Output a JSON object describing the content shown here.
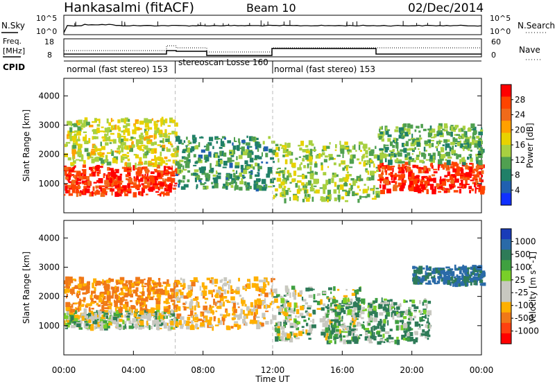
{
  "header": {
    "station": "Hankasalmi (fitACF)",
    "beam": "Beam 10",
    "date": "02/Dec/2014"
  },
  "noise_panel": {
    "left_label": "N.Sky",
    "right_label": "N.Search",
    "ytick_top": "10^5",
    "ytick_bottom": "10^0"
  },
  "freq_panel": {
    "left_label_1": "Freq.",
    "left_label_2": "[MHz]",
    "left_ticks": [
      "18",
      "8"
    ],
    "right_label": "Nave",
    "right_ticks": [
      "60",
      "0"
    ],
    "cpid_label": "CPID"
  },
  "cpid_segments": [
    {
      "label": "normal (fast stereo) 153",
      "start_hour": 0,
      "end_hour": 6.4
    },
    {
      "label": "stereoscan Losse 160",
      "start_hour": 6.4,
      "end_hour": 12
    },
    {
      "label": "normal (fast stereo) 153",
      "start_hour": 12,
      "end_hour": 24
    }
  ],
  "chart_data": [
    {
      "type": "heatmap",
      "quantity": "Power",
      "ylabel": "Slant Range [km]",
      "colorbar_label": "Power [dB]",
      "colorbar_ticks": [
        "28",
        "24",
        "20",
        "16",
        "12",
        "8",
        "4"
      ],
      "colorbar_colors": [
        "#ff0000",
        "#ff4400",
        "#f06a1a",
        "#ffa000",
        "#e8d200",
        "#a8d040",
        "#50a050",
        "#208068",
        "#2060b0",
        "#1030ff"
      ],
      "ylim": [
        0,
        4600
      ],
      "yticks": [
        1000,
        2000,
        3000,
        4000
      ],
      "xlim": [
        0,
        24
      ],
      "echo_regions": [
        {
          "start_hour": 0,
          "end_hour": 6.4,
          "range_km": [
            600,
            1600
          ],
          "power_db": 28
        },
        {
          "start_hour": 0,
          "end_hour": 6.4,
          "range_km": [
            1600,
            3200
          ],
          "power_db": 16
        },
        {
          "start_hour": 6.4,
          "end_hour": 12,
          "range_km": [
            800,
            2600
          ],
          "power_db": 10
        },
        {
          "start_hour": 12,
          "end_hour": 18,
          "range_km": [
            400,
            2400
          ],
          "power_db": 14
        },
        {
          "start_hour": 18,
          "end_hour": 24,
          "range_km": [
            700,
            1700
          ],
          "power_db": 28
        },
        {
          "start_hour": 18,
          "end_hour": 24,
          "range_km": [
            1700,
            3000
          ],
          "power_db": 12
        }
      ]
    },
    {
      "type": "heatmap",
      "quantity": "Velocity",
      "ylabel": "Slant Range [km]",
      "colorbar_label": "Velocity [m s^-1]",
      "colorbar_ticks": [
        "1000",
        "500",
        "100",
        "25",
        "-25",
        "-100",
        "-500",
        "-1000"
      ],
      "colorbar_colors": [
        "#1a3cb8",
        "#2a6aa8",
        "#2e7b58",
        "#3fa040",
        "#79cf29",
        "#c8c8c0",
        "#c8c8c0",
        "#ffb000",
        "#f07818",
        "#ff4010",
        "#ff0000"
      ],
      "ylim": [
        0,
        4600
      ],
      "yticks": [
        1000,
        2000,
        3000,
        4000
      ],
      "xlim": [
        0,
        24
      ],
      "echo_regions": [
        {
          "start_hour": 0,
          "end_hour": 6.4,
          "range_km": [
            900,
            1500
          ],
          "velocity_ms": 0
        },
        {
          "start_hour": 0,
          "end_hour": 6.4,
          "range_km": [
            1500,
            2600
          ],
          "velocity_ms": -300
        },
        {
          "start_hour": 6.4,
          "end_hour": 12,
          "range_km": [
            900,
            2600
          ],
          "velocity_ms": -150
        },
        {
          "start_hour": 12,
          "end_hour": 17,
          "range_km": [
            500,
            2300
          ],
          "velocity_ms": 0
        },
        {
          "start_hour": 15,
          "end_hour": 21,
          "range_km": [
            400,
            1900
          ],
          "velocity_ms": 100
        },
        {
          "start_hour": 20,
          "end_hour": 24,
          "range_km": [
            2400,
            3000
          ],
          "velocity_ms": 300
        }
      ]
    }
  ],
  "xaxis": {
    "label": "Time UT",
    "ticks": [
      "00:00",
      "04:00",
      "08:00",
      "12:00",
      "16:00",
      "20:00",
      "00:00"
    ]
  }
}
